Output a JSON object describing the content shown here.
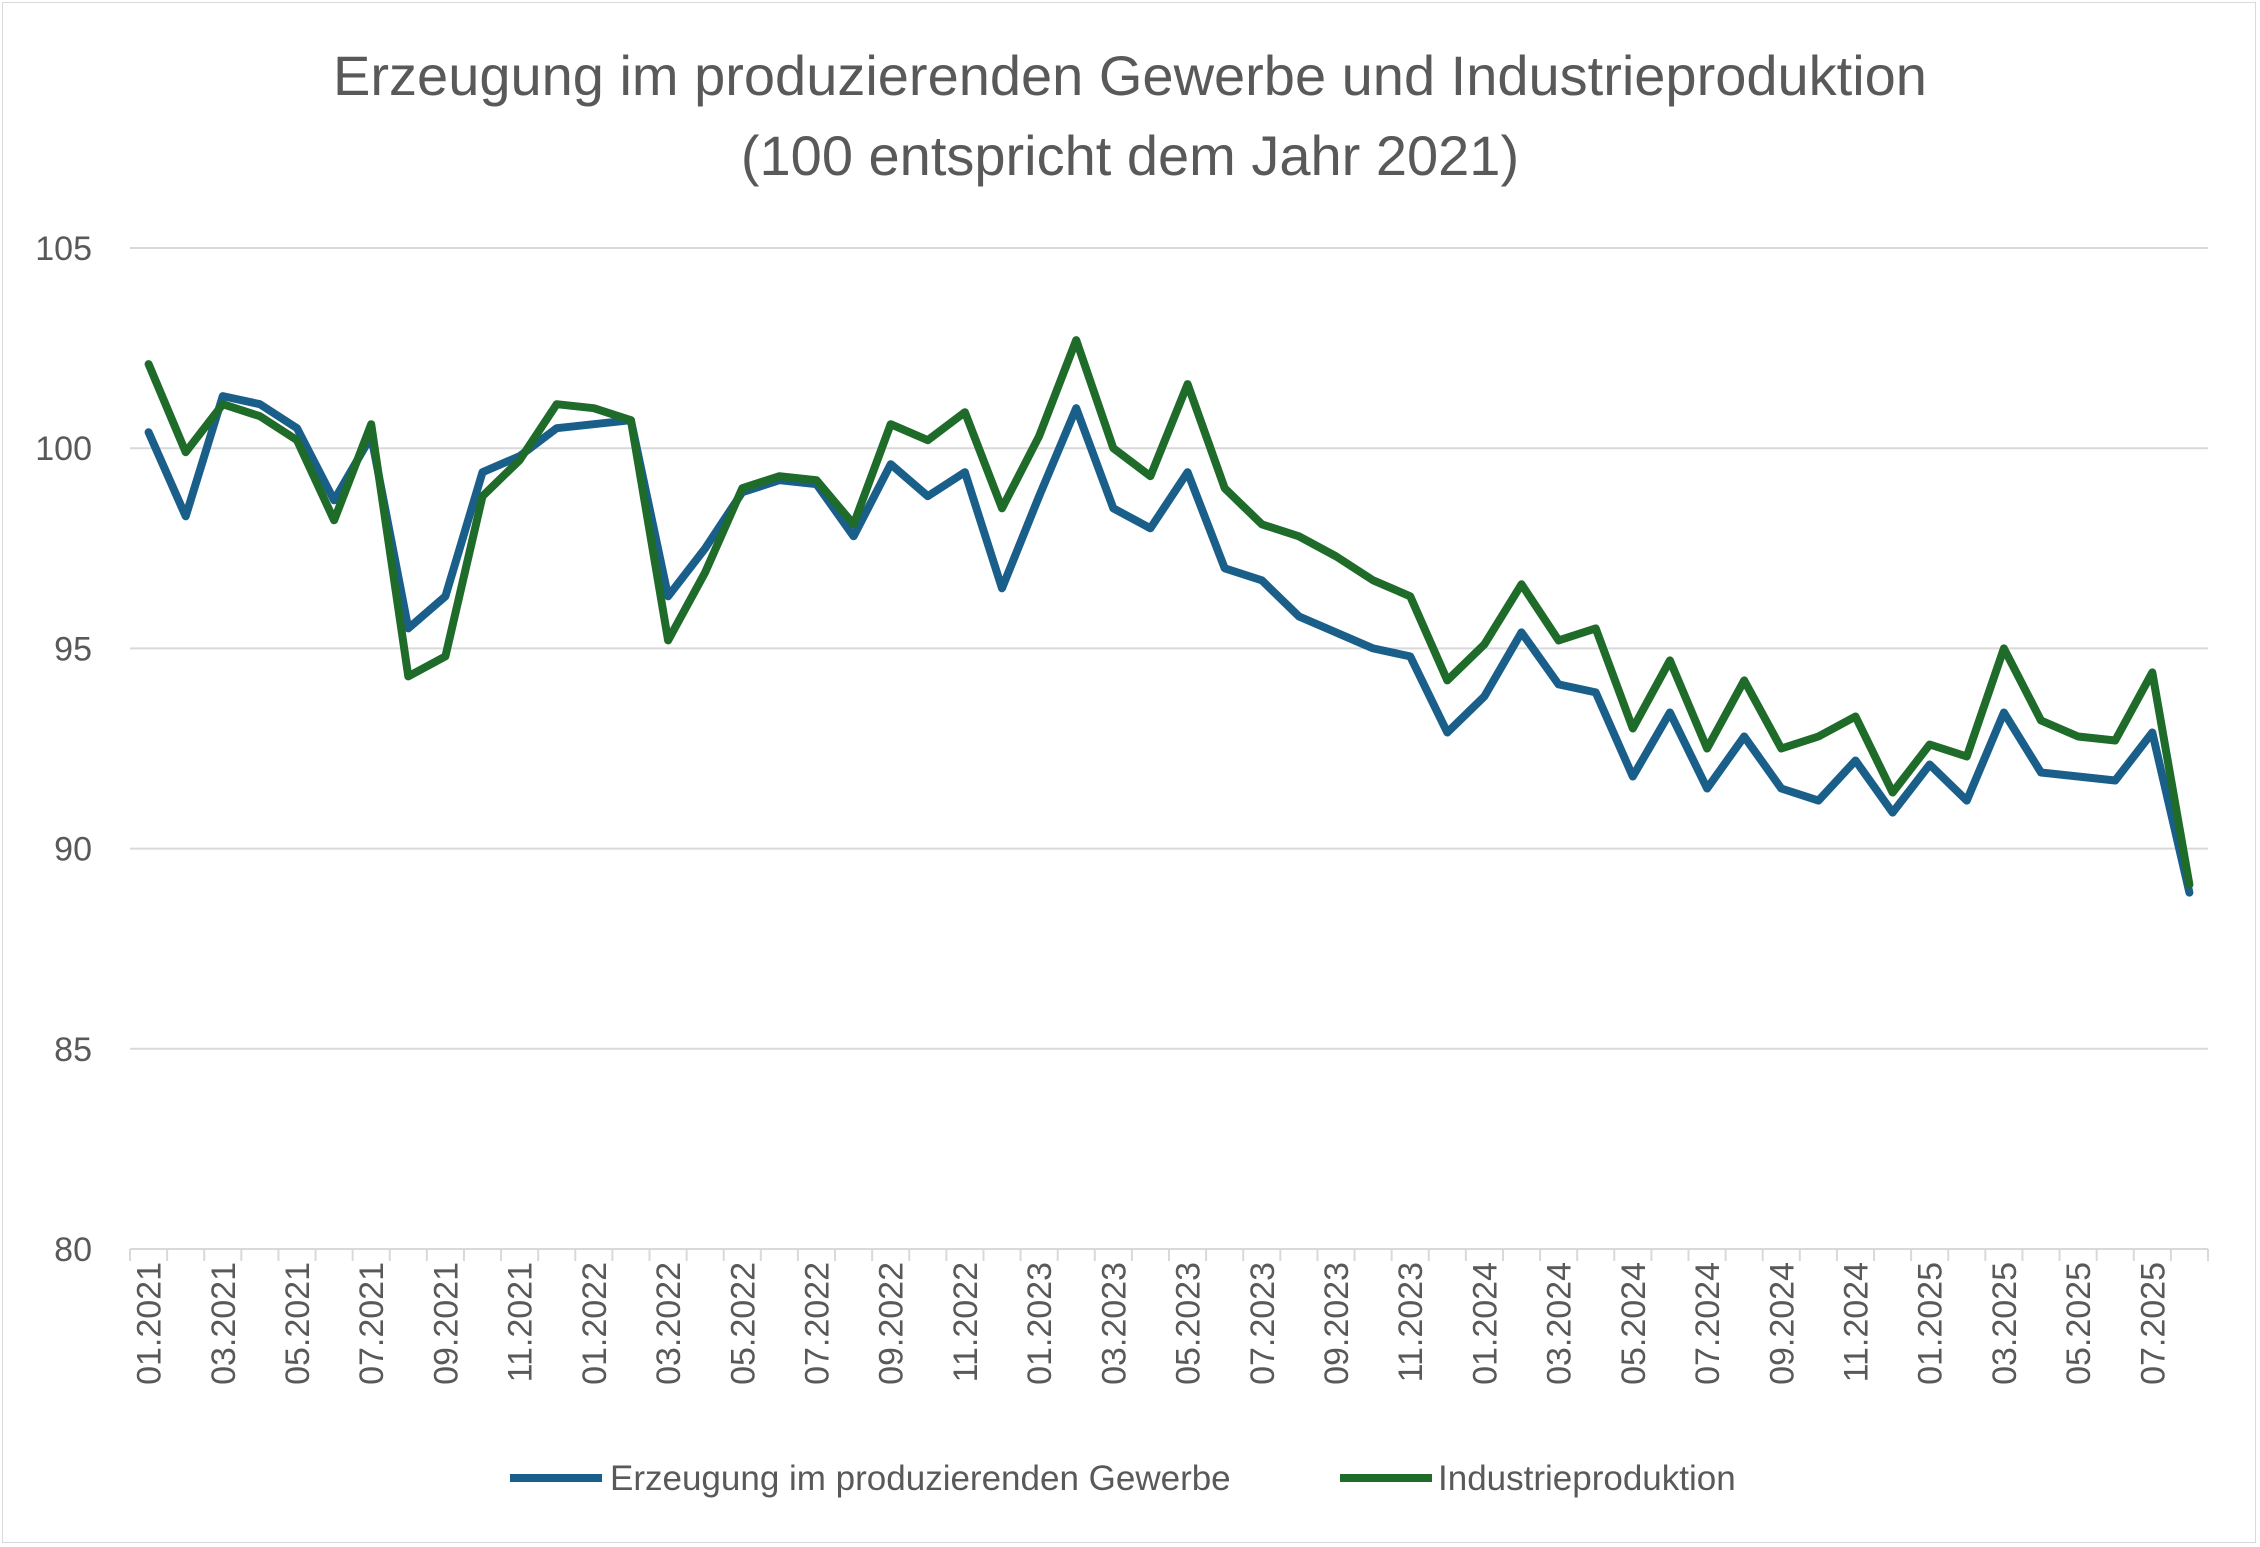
{
  "chart_data": {
    "type": "line",
    "title_line1": "Erzeugung im produzierenden Gewerbe und Industrieproduktion",
    "title_line2": "(100 entspricht dem Jahr 2021)",
    "xlabel": "",
    "ylabel": "",
    "ylim": [
      80,
      105
    ],
    "yticks": [
      80,
      85,
      90,
      95,
      100,
      105
    ],
    "ytick_labels": [
      "80",
      "85",
      "90",
      "95",
      "100",
      "105"
    ],
    "grid": true,
    "legend_position": "bottom",
    "categories": [
      "01.2021",
      "02.2021",
      "03.2021",
      "04.2021",
      "05.2021",
      "06.2021",
      "07.2021",
      "08.2021",
      "09.2021",
      "10.2021",
      "11.2021",
      "12.2021",
      "01.2022",
      "02.2022",
      "03.2022",
      "04.2022",
      "05.2022",
      "06.2022",
      "07.2022",
      "08.2022",
      "09.2022",
      "10.2022",
      "11.2022",
      "12.2022",
      "01.2023",
      "02.2023",
      "03.2023",
      "04.2023",
      "05.2023",
      "06.2023",
      "07.2023",
      "08.2023",
      "09.2023",
      "10.2023",
      "11.2023",
      "12.2023",
      "01.2024",
      "02.2024",
      "03.2024",
      "04.2024",
      "05.2024",
      "06.2024",
      "07.2024",
      "08.2024",
      "09.2024",
      "10.2024",
      "11.2024",
      "12.2024",
      "01.2025",
      "02.2025",
      "03.2025",
      "04.2025",
      "05.2025",
      "06.2025",
      "07.2025",
      "08.2025"
    ],
    "x_tick_labels": [
      "01.2021",
      "03.2021",
      "05.2021",
      "07.2021",
      "09.2021",
      "11.2021",
      "01.2022",
      "03.2022",
      "05.2022",
      "07.2022",
      "09.2022",
      "11.2022",
      "01.2023",
      "03.2023",
      "05.2023",
      "07.2023",
      "09.2023",
      "11.2023",
      "01.2024",
      "03.2024",
      "05.2024",
      "07.2024",
      "09.2024",
      "11.2024",
      "01.2025",
      "03.2025",
      "05.2025",
      "07.2025"
    ],
    "series": [
      {
        "name": "Erzeugung im produzierenden Gewerbe",
        "color": "#1a5f8a",
        "values": [
          100.4,
          98.3,
          101.3,
          101.1,
          100.5,
          98.7,
          100.3,
          95.5,
          96.3,
          99.4,
          99.8,
          100.5,
          100.6,
          100.7,
          96.3,
          97.5,
          98.9,
          99.2,
          99.1,
          97.8,
          99.6,
          98.8,
          99.4,
          96.5,
          98.8,
          101.0,
          98.5,
          98.0,
          99.4,
          97.0,
          96.7,
          95.8,
          95.4,
          95.0,
          94.8,
          92.9,
          93.8,
          95.4,
          94.1,
          93.9,
          91.8,
          93.4,
          91.5,
          92.8,
          91.5,
          91.2,
          92.2,
          90.9,
          92.1,
          91.2,
          93.4,
          91.9,
          91.8,
          91.7,
          92.9,
          88.9
        ]
      },
      {
        "name": "Industrieproduktion",
        "color": "#1e6b2a",
        "values": [
          102.1,
          99.9,
          101.1,
          100.8,
          100.2,
          98.2,
          100.6,
          94.3,
          94.8,
          98.8,
          99.7,
          101.1,
          101.0,
          100.7,
          95.2,
          96.9,
          99.0,
          99.3,
          99.2,
          98.1,
          100.6,
          100.2,
          100.9,
          98.5,
          100.3,
          102.7,
          100.0,
          99.3,
          101.6,
          99.0,
          98.1,
          97.8,
          97.3,
          96.7,
          96.3,
          94.2,
          95.1,
          96.6,
          95.2,
          95.5,
          93.0,
          94.7,
          92.5,
          94.2,
          92.5,
          92.8,
          93.3,
          91.4,
          92.6,
          92.3,
          95.0,
          93.2,
          92.8,
          92.7,
          94.4,
          89.1
        ]
      }
    ]
  }
}
